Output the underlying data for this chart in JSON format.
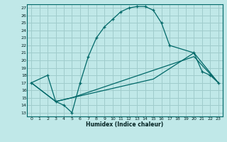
{
  "xlabel": "Humidex (Indice chaleur)",
  "background_color": "#c0e8e8",
  "grid_color": "#a0cccc",
  "line_color": "#006868",
  "xlim": [
    -0.5,
    23.5
  ],
  "ylim": [
    12.5,
    27.5
  ],
  "xticks": [
    0,
    1,
    2,
    3,
    4,
    5,
    6,
    7,
    8,
    9,
    10,
    11,
    12,
    13,
    14,
    15,
    16,
    17,
    18,
    19,
    20,
    21,
    22,
    23
  ],
  "yticks": [
    13,
    14,
    15,
    16,
    17,
    18,
    19,
    20,
    21,
    22,
    23,
    24,
    25,
    26,
    27
  ],
  "curve1_x": [
    0,
    2,
    3,
    4,
    5,
    6,
    7,
    8,
    9,
    10,
    11,
    12,
    13,
    14,
    15,
    16,
    17,
    20,
    21,
    22,
    23
  ],
  "curve1_y": [
    17,
    18,
    14.5,
    14,
    13,
    17,
    20.5,
    23,
    24.5,
    25.5,
    26.5,
    27,
    27.2,
    27.2,
    26.7,
    25,
    22,
    21,
    18.5,
    18,
    17
  ],
  "curve2_x": [
    0,
    3,
    5,
    20,
    23
  ],
  "curve2_y": [
    17,
    14.5,
    15,
    20.5,
    17
  ],
  "curve3_x": [
    0,
    3,
    5,
    15,
    20,
    23
  ],
  "curve3_y": [
    17,
    14.5,
    15,
    17.5,
    21,
    17
  ]
}
